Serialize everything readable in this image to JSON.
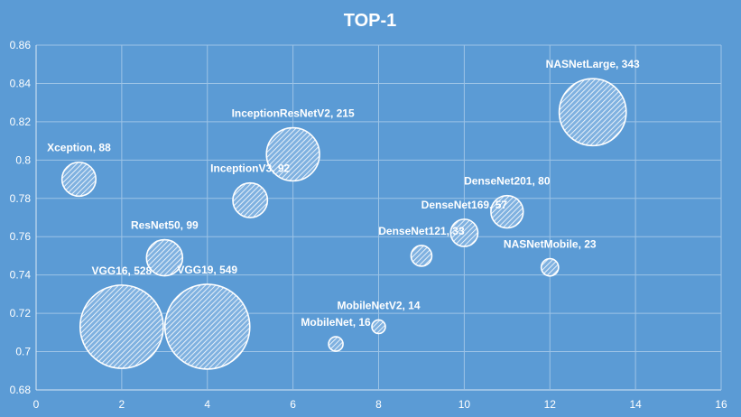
{
  "chart_data": {
    "type": "bubble",
    "title": "TOP-1",
    "xlabel": "",
    "ylabel": "",
    "xlim": [
      0,
      16
    ],
    "ylim": [
      0.68,
      0.86
    ],
    "x_ticks": [
      "0",
      "2",
      "4",
      "6",
      "8",
      "10",
      "12",
      "14",
      "16"
    ],
    "y_ticks": [
      "0.68",
      "0.7",
      "0.72",
      "0.74",
      "0.76",
      "0.78",
      "0.8",
      "0.82",
      "0.84",
      "0.86"
    ],
    "grid": true,
    "legend": "none",
    "colors": {
      "background": "#5b9bd5",
      "bubble_stroke": "#ffffff",
      "text": "#ffffff",
      "grid": "#9cc3e6"
    },
    "points": [
      {
        "label": "Xception, 88",
        "x": 1,
        "y": 0.79,
        "size": 88
      },
      {
        "label": "VGG16,  528",
        "x": 2,
        "y": 0.713,
        "size": 528
      },
      {
        "label": "ResNet50, 99",
        "x": 3,
        "y": 0.749,
        "size": 99
      },
      {
        "label": "VGG19,  549",
        "x": 4,
        "y": 0.713,
        "size": 549
      },
      {
        "label": "InceptionV3, 92",
        "x": 5,
        "y": 0.779,
        "size": 92
      },
      {
        "label": "InceptionResNetV2,  215",
        "x": 6,
        "y": 0.803,
        "size": 215
      },
      {
        "label": "MobileNet,  16",
        "x": 7,
        "y": 0.704,
        "size": 16
      },
      {
        "label": "MobileNetV2,  14",
        "x": 8,
        "y": 0.713,
        "size": 14
      },
      {
        "label": "DenseNet121, 33",
        "x": 9,
        "y": 0.75,
        "size": 33
      },
      {
        "label": "DenseNet169, 57",
        "x": 10,
        "y": 0.762,
        "size": 57
      },
      {
        "label": "DenseNet201, 80",
        "x": 11,
        "y": 0.773,
        "size": 80
      },
      {
        "label": "NASNetMobile,  23",
        "x": 12,
        "y": 0.744,
        "size": 23
      },
      {
        "label": "NASNetLarge,  343",
        "x": 13,
        "y": 0.825,
        "size": 343
      }
    ]
  }
}
